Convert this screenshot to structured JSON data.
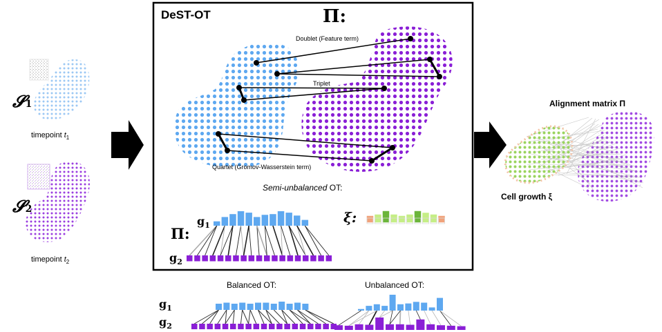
{
  "figure": {
    "title": "DeST-OT",
    "pi_symbol": "Π:",
    "slice1": {
      "symbol": "𝓢",
      "index": "1",
      "caption": "timepoint ",
      "tvar": "t",
      "tsub": "1"
    },
    "slice2": {
      "symbol": "𝓢",
      "index": "2",
      "caption": "timepoint ",
      "tvar": "t",
      "tsub": "2"
    },
    "annotations": {
      "doublet": "Doublet (Feature term)",
      "triplet": "Triplet",
      "quartet": "Quartet (Gromov-Wasserstein term)"
    },
    "semi_unbalanced": {
      "italic": "Semi-unbalanced",
      "rest": " OT:"
    },
    "g1": "g",
    "g1_sub": "1",
    "g2": "g",
    "g2_sub": "2",
    "xi": "ξ:",
    "balanced_label": "Balanced OT:",
    "unbalanced_label": "Unbalanced OT:",
    "alignment_label": "Alignment matrix Π",
    "growth_label": "Cell growth ξ",
    "colors": {
      "blue": "#5ea8f0",
      "purple": "#8a1fd6",
      "green_dark": "#6bb53a",
      "green_light": "#c5ee86",
      "orange": "#f1a27a",
      "black": "#000000"
    },
    "bar_values": {
      "semi_g1": [
        0.3,
        0.6,
        0.8,
        1.0,
        0.9,
        0.6,
        0.75,
        0.8,
        1.0,
        0.9,
        0.7,
        0.4
      ],
      "xi_heights": [
        0.3,
        0.5,
        1.0,
        0.5,
        0.3,
        0.5,
        1.0,
        0.75,
        0.5,
        0.3
      ],
      "xi_colors": [
        "orange",
        "green_light",
        "green_dark",
        "green_light",
        "green_light",
        "green_light",
        "green_dark",
        "green_light",
        "green_light",
        "orange"
      ],
      "balanced_g1": [
        0.6,
        0.7,
        0.6,
        0.7,
        0.6,
        0.7,
        0.7,
        0.6,
        0.8,
        0.6,
        0.7,
        0.6
      ],
      "unbalanced_g1": [
        0.1,
        0.3,
        0.4,
        0.3,
        1.0,
        0.4,
        0.45,
        0.55,
        0.5,
        0.2,
        0.8
      ],
      "unbalanced_g2": [
        0.2,
        0.15,
        0.3,
        0.25,
        1.0,
        0.3,
        0.3,
        0.25,
        0.8,
        0.3,
        0.2,
        0.15,
        0.1
      ]
    }
  }
}
